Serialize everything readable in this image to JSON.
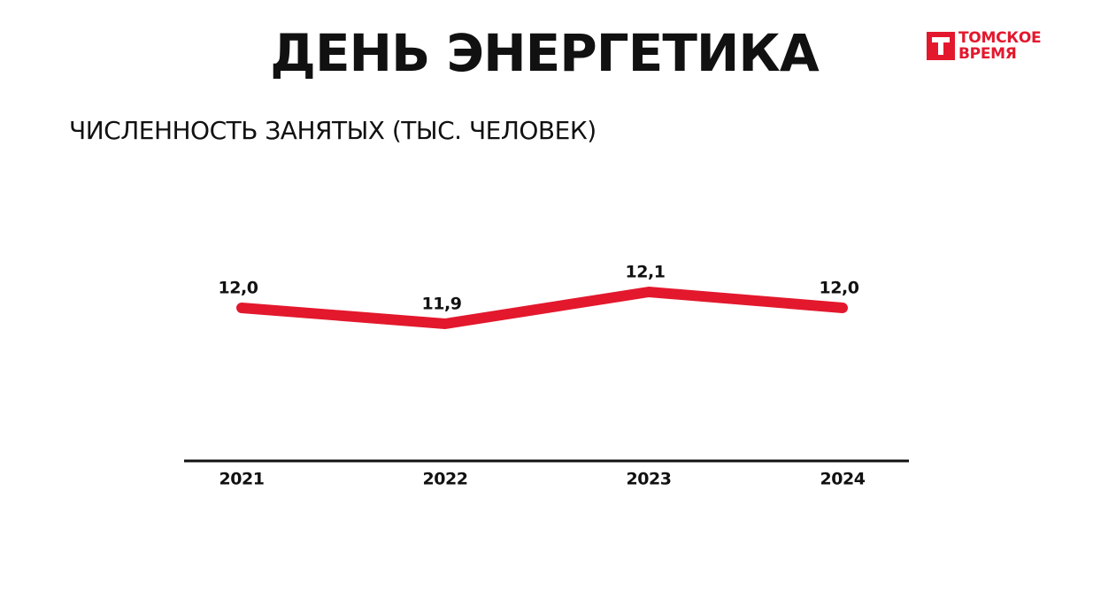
{
  "chart_data": {
    "type": "line",
    "title": "ДЕНЬ ЭНЕРГЕТИКА",
    "subtitle": "ЧИСЛЕННОСТЬ ЗАНЯТЫХ (ТЫС. ЧЕЛОВЕК)",
    "categories": [
      "2021",
      "2022",
      "2023",
      "2024"
    ],
    "values": [
      12.0,
      11.9,
      12.1,
      12.0
    ],
    "value_labels": [
      "12,0",
      "11,9",
      "12,1",
      "12,0"
    ],
    "color": "#e3182d"
  },
  "logo": {
    "lines": [
      "ТОМСКОЕ",
      "ВРЕМЯ"
    ]
  }
}
